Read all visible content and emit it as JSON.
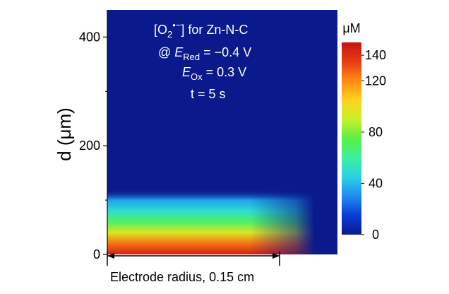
{
  "chart_data": {
    "type": "heatmap",
    "title_lines": [
      {
        "main": "[O",
        "sub": "2",
        "sup": "•−",
        "tail": "] for Zn-N-C"
      },
      {
        "prefix": "@ ",
        "ital": "E",
        "sub": "Red",
        "tail": " = −0.4 V"
      },
      {
        "prefix": "",
        "ital": "E",
        "sub": "Ox",
        "tail": " = 0.3 V"
      },
      {
        "prefix": "t = 5 s",
        "ital": "",
        "sub": "",
        "tail": ""
      }
    ],
    "ylabel": "d (μm)",
    "xlabel": "Electrode radius, 0.15 cm",
    "y_ticks": [
      0,
      200,
      400
    ],
    "ylim": [
      0,
      450
    ],
    "x_extent_cm": [
      0,
      0.15
    ],
    "colorbar": {
      "unit": "μM",
      "range": [
        0,
        150
      ],
      "ticks": [
        0,
        40,
        80,
        120,
        140
      ],
      "colormap": [
        "#0a1a8c",
        "#0a3cd8",
        "#1e8cf0",
        "#28d2e6",
        "#3cf0a0",
        "#5af046",
        "#c8f028",
        "#ffd21e",
        "#ff8c14",
        "#e63c14",
        "#c81414"
      ]
    },
    "concentration_profile": {
      "depth_um": [
        0,
        20,
        40,
        60,
        80,
        100,
        120
      ],
      "value_uM": [
        145,
        125,
        95,
        70,
        50,
        35,
        0
      ]
    },
    "background_value_uM": 0
  }
}
